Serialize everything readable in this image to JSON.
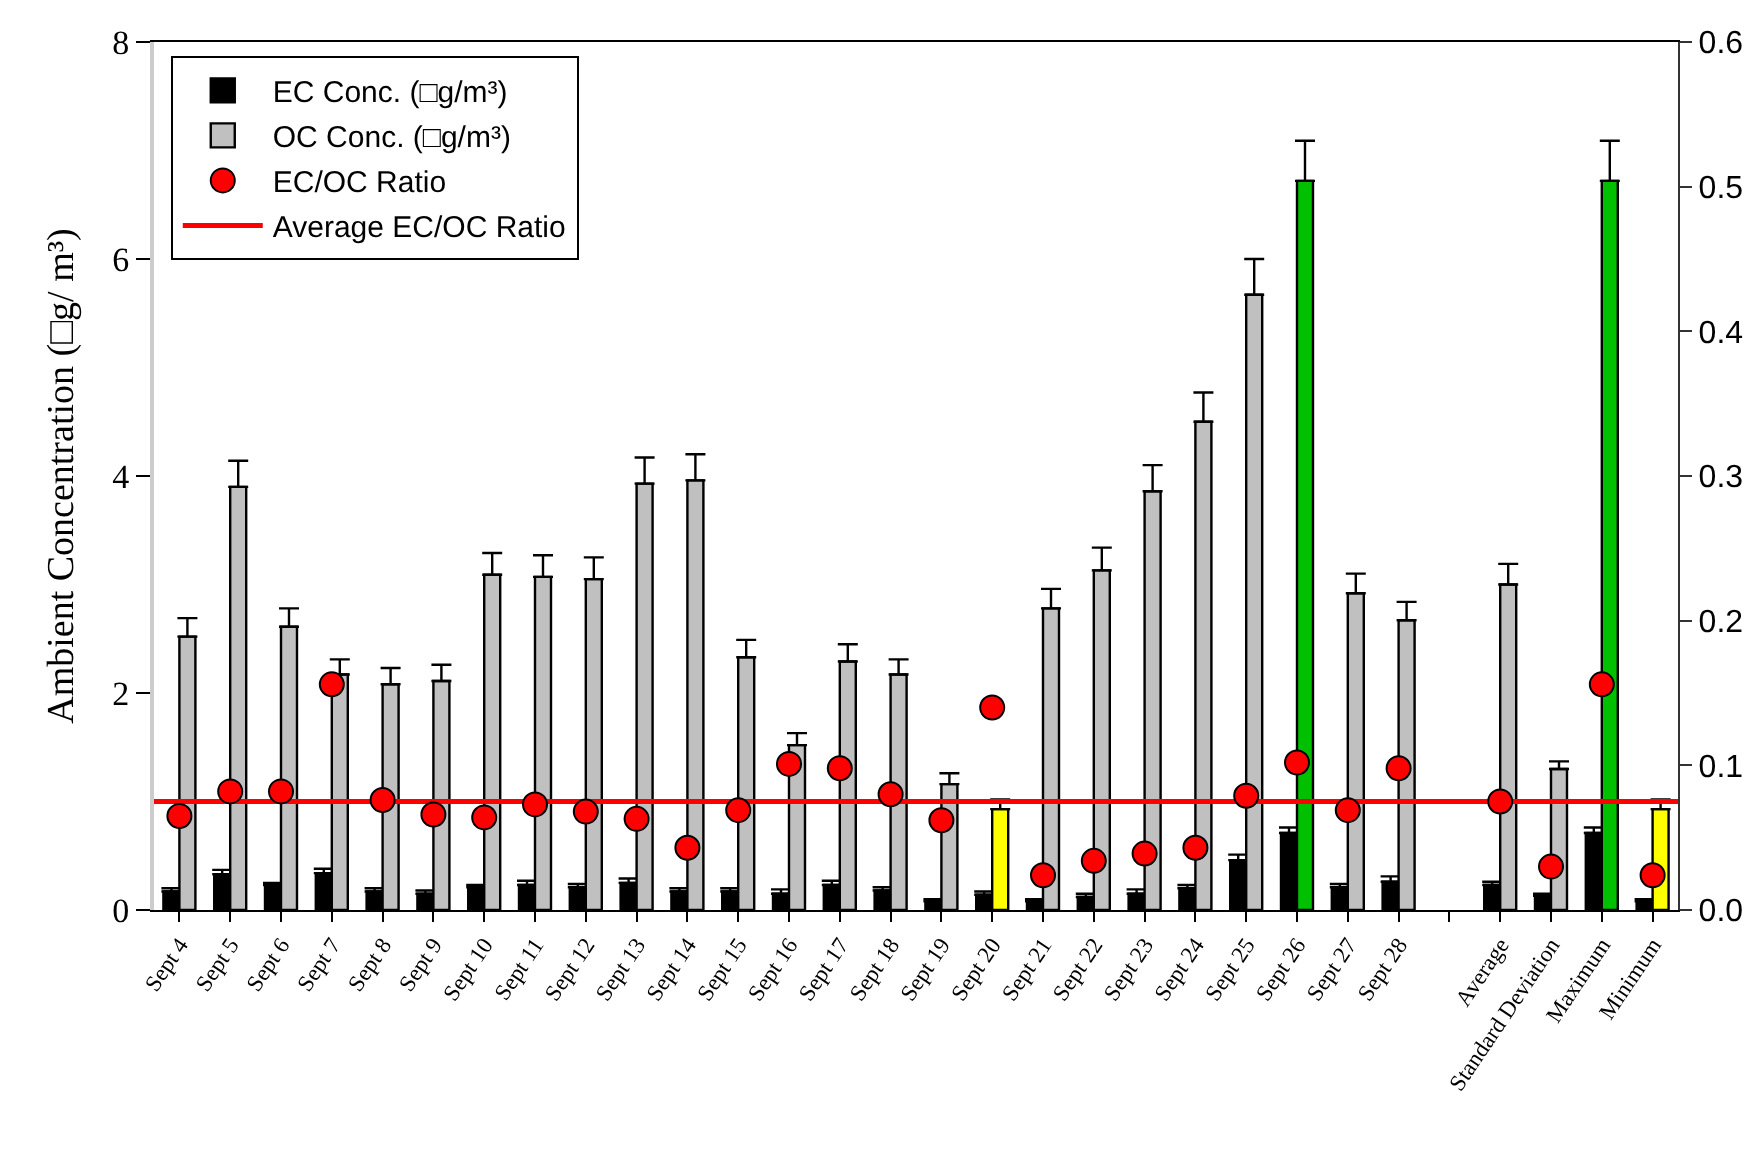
{
  "chart_data": {
    "type": "bar",
    "ylabel": "Ambient Concentration (□g/ m³)",
    "categories": [
      "Sept 4",
      "Sept 5",
      "Sept 6",
      "Sept 7",
      "Sept 8",
      "Sept 9",
      "Sept 10",
      "Sept 11",
      "Sept 12",
      "Sept 13",
      "Sept 14",
      "Sept 15",
      "Sept 16",
      "Sept 17",
      "Sept 18",
      "Sept 19",
      "Sept 20",
      "Sept 21",
      "Sept 22",
      "Sept 23",
      "Sept 24",
      "Sept 25",
      "Sept 26",
      "Sept 27",
      "Sept 28",
      null,
      "Average",
      "Standard Deviation",
      "Maximum",
      "Minimum"
    ],
    "series": [
      {
        "name": "EC Conc. (□g/m³)",
        "color": "#000000",
        "values": [
          0.17,
          0.33,
          0.23,
          0.34,
          0.17,
          0.15,
          0.21,
          0.23,
          0.21,
          0.25,
          0.17,
          0.17,
          0.15,
          0.23,
          0.18,
          0.08,
          0.14,
          0.08,
          0.12,
          0.15,
          0.2,
          0.46,
          0.71,
          0.21,
          0.26,
          null,
          0.23,
          0.13,
          0.71,
          0.08
        ],
        "errors": [
          [
            0.17,
            0.2
          ],
          [
            0.33,
            0.37
          ],
          [
            0.23,
            0.25
          ],
          [
            0.34,
            0.38
          ],
          [
            0.17,
            0.2
          ],
          [
            0.15,
            0.18
          ],
          [
            0.21,
            0.23
          ],
          [
            0.23,
            0.27
          ],
          [
            0.21,
            0.24
          ],
          [
            0.25,
            0.29
          ],
          [
            0.17,
            0.2
          ],
          [
            0.17,
            0.2
          ],
          [
            0.15,
            0.19
          ],
          [
            0.23,
            0.27
          ],
          [
            0.18,
            0.21
          ],
          [
            0.08,
            0.1
          ],
          [
            0.14,
            0.17
          ],
          [
            0.08,
            0.1
          ],
          [
            0.12,
            0.15
          ],
          [
            0.15,
            0.19
          ],
          [
            0.2,
            0.23
          ],
          [
            0.46,
            0.51
          ],
          [
            0.71,
            0.76
          ],
          [
            0.21,
            0.24
          ],
          [
            0.26,
            0.31
          ],
          null,
          [
            0.23,
            0.26
          ],
          [
            0.13,
            0.15
          ],
          [
            0.71,
            0.76
          ],
          [
            0.08,
            0.1
          ]
        ]
      },
      {
        "name": "OC Conc. (□g/m³)",
        "colors": [
          "#c0c0c0",
          "#c0c0c0",
          "#c0c0c0",
          "#c0c0c0",
          "#c0c0c0",
          "#c0c0c0",
          "#c0c0c0",
          "#c0c0c0",
          "#c0c0c0",
          "#c0c0c0",
          "#c0c0c0",
          "#c0c0c0",
          "#c0c0c0",
          "#c0c0c0",
          "#c0c0c0",
          "#c0c0c0",
          "#ffff00",
          "#c0c0c0",
          "#c0c0c0",
          "#c0c0c0",
          "#c0c0c0",
          "#c0c0c0",
          "#00c000",
          "#c0c0c0",
          "#c0c0c0",
          "#c0c0c0",
          "#c0c0c0",
          "#c0c0c0",
          "#00c000",
          "#ffff00"
        ],
        "values": [
          2.52,
          3.9,
          2.61,
          2.17,
          2.08,
          2.11,
          3.09,
          3.07,
          3.05,
          3.93,
          3.96,
          2.33,
          1.52,
          2.29,
          2.17,
          1.16,
          0.93,
          2.78,
          3.13,
          3.86,
          4.5,
          5.67,
          6.72,
          2.92,
          2.67,
          null,
          3.0,
          1.3,
          6.72,
          0.93
        ],
        "errors": [
          [
            2.52,
            2.69
          ],
          [
            3.9,
            4.14
          ],
          [
            2.61,
            2.78
          ],
          [
            2.17,
            2.31
          ],
          [
            2.08,
            2.23
          ],
          [
            2.11,
            2.26
          ],
          [
            3.09,
            3.29
          ],
          [
            3.07,
            3.27
          ],
          [
            3.05,
            3.25
          ],
          [
            3.93,
            4.17
          ],
          [
            3.96,
            4.2
          ],
          [
            2.33,
            2.49
          ],
          [
            1.52,
            1.63
          ],
          [
            2.29,
            2.45
          ],
          [
            2.17,
            2.31
          ],
          [
            1.16,
            1.26
          ],
          [
            0.93,
            1.02
          ],
          [
            2.78,
            2.96
          ],
          [
            3.13,
            3.34
          ],
          [
            3.86,
            4.1
          ],
          [
            4.5,
            4.77
          ],
          [
            5.67,
            6.0
          ],
          [
            6.72,
            7.09
          ],
          [
            2.92,
            3.1
          ],
          [
            2.67,
            2.84
          ],
          null,
          [
            3.0,
            3.19
          ],
          [
            1.3,
            1.37
          ],
          [
            6.72,
            7.09
          ],
          [
            0.93,
            1.02
          ]
        ]
      },
      {
        "name": "EC/OC Ratio",
        "type": "scatter",
        "axis": "y2",
        "color": "#ff0000",
        "values": [
          0.065,
          0.082,
          0.082,
          0.156,
          0.076,
          0.066,
          0.064,
          0.073,
          0.068,
          0.063,
          0.043,
          0.069,
          0.101,
          0.098,
          0.08,
          0.062,
          0.14,
          0.024,
          0.034,
          0.039,
          0.043,
          0.079,
          0.102,
          0.069,
          0.098,
          null,
          0.075,
          0.03,
          0.156,
          0.024
        ]
      }
    ],
    "ref_lines": [
      {
        "axis": "y2",
        "value": 0.075,
        "label": "Average EC/OC Ratio",
        "color": "#ff0000"
      }
    ],
    "ylim": [
      0,
      8
    ],
    "yticks": [
      0,
      2,
      4,
      6,
      8
    ],
    "y2lim": [
      0,
      0.6
    ],
    "y2ticks": [
      {
        "value": 0,
        "label": "0.0"
      },
      0.1,
      0.2,
      0.3,
      0.4,
      0.5,
      0.6
    ],
    "grid": false,
    "legend": "top left",
    "marker": "circle"
  }
}
